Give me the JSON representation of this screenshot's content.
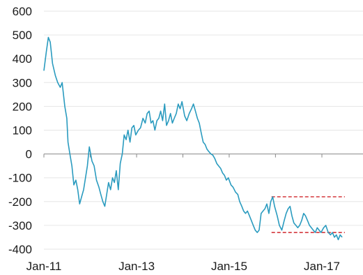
{
  "chart_data": {
    "type": "line",
    "title": "",
    "xlabel": "",
    "ylabel": "",
    "ylim": [
      -400,
      600
    ],
    "y_ticks": [
      600,
      500,
      400,
      300,
      200,
      100,
      0,
      -100,
      -200,
      -300,
      -400
    ],
    "x_ticks": [
      "Jan-11",
      "Jan-13",
      "Jan-15",
      "Jan-17"
    ],
    "grid": true,
    "legend": "none",
    "colors": {
      "line": "#2a9bbf",
      "grid": "#e6e6e6",
      "zero_axis": "#888888",
      "reference": "#d0262c"
    },
    "series": [
      {
        "color": "#2a9bbf",
        "points": [
          [
            "2011-01-01",
            350
          ],
          [
            "2011-01-20",
            430
          ],
          [
            "2011-02-05",
            490
          ],
          [
            "2011-02-20",
            470
          ],
          [
            "2011-03-10",
            380
          ],
          [
            "2011-04-01",
            330
          ],
          [
            "2011-04-20",
            300
          ],
          [
            "2011-05-10",
            280
          ],
          [
            "2011-05-25",
            300
          ],
          [
            "2011-06-15",
            200
          ],
          [
            "2011-07-01",
            150
          ],
          [
            "2011-07-10",
            50
          ],
          [
            "2011-07-25",
            0
          ],
          [
            "2011-08-10",
            -50
          ],
          [
            "2011-08-25",
            -130
          ],
          [
            "2011-09-10",
            -110
          ],
          [
            "2011-09-25",
            -150
          ],
          [
            "2011-10-10",
            -210
          ],
          [
            "2011-10-25",
            -180
          ],
          [
            "2011-11-10",
            -150
          ],
          [
            "2011-11-25",
            -100
          ],
          [
            "2011-12-10",
            -50
          ],
          [
            "2011-12-25",
            30
          ],
          [
            "2012-01-15",
            -30
          ],
          [
            "2012-02-01",
            -50
          ],
          [
            "2012-02-20",
            -110
          ],
          [
            "2012-03-10",
            -140
          ],
          [
            "2012-03-25",
            -170
          ],
          [
            "2012-04-10",
            -200
          ],
          [
            "2012-04-25",
            -220
          ],
          [
            "2012-05-10",
            -170
          ],
          [
            "2012-05-25",
            -120
          ],
          [
            "2012-06-10",
            -150
          ],
          [
            "2012-06-25",
            -100
          ],
          [
            "2012-07-10",
            -120
          ],
          [
            "2012-07-25",
            -70
          ],
          [
            "2012-08-10",
            -150
          ],
          [
            "2012-08-25",
            -40
          ],
          [
            "2012-09-10",
            0
          ],
          [
            "2012-09-25",
            80
          ],
          [
            "2012-10-10",
            60
          ],
          [
            "2012-10-25",
            100
          ],
          [
            "2012-11-10",
            50
          ],
          [
            "2012-11-25",
            110
          ],
          [
            "2012-12-10",
            120
          ],
          [
            "2012-12-25",
            80
          ],
          [
            "2013-01-15",
            100
          ],
          [
            "2013-02-01",
            110
          ],
          [
            "2013-02-20",
            150
          ],
          [
            "2013-03-10",
            130
          ],
          [
            "2013-03-25",
            170
          ],
          [
            "2013-04-10",
            180
          ],
          [
            "2013-04-25",
            130
          ],
          [
            "2013-05-10",
            140
          ],
          [
            "2013-05-25",
            100
          ],
          [
            "2013-06-10",
            140
          ],
          [
            "2013-06-25",
            150
          ],
          [
            "2013-07-10",
            180
          ],
          [
            "2013-07-25",
            140
          ],
          [
            "2013-08-10",
            210
          ],
          [
            "2013-08-25",
            120
          ],
          [
            "2013-09-10",
            140
          ],
          [
            "2013-09-25",
            170
          ],
          [
            "2013-10-10",
            130
          ],
          [
            "2013-10-25",
            150
          ],
          [
            "2013-11-10",
            170
          ],
          [
            "2013-11-25",
            210
          ],
          [
            "2013-12-10",
            190
          ],
          [
            "2013-12-25",
            220
          ],
          [
            "2014-01-15",
            160
          ],
          [
            "2014-02-01",
            140
          ],
          [
            "2014-02-20",
            170
          ],
          [
            "2014-03-10",
            190
          ],
          [
            "2014-03-25",
            210
          ],
          [
            "2014-04-10",
            180
          ],
          [
            "2014-04-25",
            150
          ],
          [
            "2014-05-10",
            130
          ],
          [
            "2014-05-25",
            90
          ],
          [
            "2014-06-10",
            50
          ],
          [
            "2014-06-25",
            40
          ],
          [
            "2014-07-10",
            20
          ],
          [
            "2014-07-25",
            10
          ],
          [
            "2014-08-10",
            0
          ],
          [
            "2014-08-25",
            -5
          ],
          [
            "2014-09-10",
            -20
          ],
          [
            "2014-09-25",
            -40
          ],
          [
            "2014-10-10",
            -50
          ],
          [
            "2014-10-25",
            -60
          ],
          [
            "2014-11-10",
            -80
          ],
          [
            "2014-11-25",
            -90
          ],
          [
            "2014-12-10",
            -110
          ],
          [
            "2014-12-25",
            -100
          ],
          [
            "2015-01-15",
            -130
          ],
          [
            "2015-02-01",
            -140
          ],
          [
            "2015-02-20",
            -160
          ],
          [
            "2015-03-10",
            -170
          ],
          [
            "2015-03-25",
            -200
          ],
          [
            "2015-04-10",
            -220
          ],
          [
            "2015-04-25",
            -240
          ],
          [
            "2015-05-10",
            -250
          ],
          [
            "2015-05-25",
            -240
          ],
          [
            "2015-06-10",
            -260
          ],
          [
            "2015-06-25",
            -280
          ],
          [
            "2015-07-10",
            -300
          ],
          [
            "2015-07-25",
            -320
          ],
          [
            "2015-08-10",
            -330
          ],
          [
            "2015-08-25",
            -320
          ],
          [
            "2015-09-10",
            -250
          ],
          [
            "2015-09-25",
            -240
          ],
          [
            "2015-10-10",
            -230
          ],
          [
            "2015-10-25",
            -210
          ],
          [
            "2015-11-10",
            -250
          ],
          [
            "2015-11-25",
            -200
          ],
          [
            "2015-12-10",
            -180
          ],
          [
            "2015-12-25",
            -220
          ],
          [
            "2016-01-15",
            -260
          ],
          [
            "2016-02-01",
            -300
          ],
          [
            "2016-02-20",
            -320
          ],
          [
            "2016-03-10",
            -280
          ],
          [
            "2016-03-25",
            -250
          ],
          [
            "2016-04-10",
            -230
          ],
          [
            "2016-04-25",
            -220
          ],
          [
            "2016-05-10",
            -260
          ],
          [
            "2016-05-25",
            -290
          ],
          [
            "2016-06-10",
            -300
          ],
          [
            "2016-06-25",
            -310
          ],
          [
            "2016-07-10",
            -300
          ],
          [
            "2016-07-25",
            -280
          ],
          [
            "2016-08-10",
            -250
          ],
          [
            "2016-08-25",
            -260
          ],
          [
            "2016-09-10",
            -280
          ],
          [
            "2016-09-25",
            -300
          ],
          [
            "2016-10-10",
            -310
          ],
          [
            "2016-10-25",
            -320
          ],
          [
            "2016-11-10",
            -330
          ],
          [
            "2016-11-25",
            -310
          ],
          [
            "2016-12-10",
            -320
          ],
          [
            "2016-12-25",
            -330
          ],
          [
            "2017-01-15",
            -310
          ],
          [
            "2017-02-01",
            -300
          ],
          [
            "2017-02-20",
            -330
          ],
          [
            "2017-03-10",
            -340
          ],
          [
            "2017-03-25",
            -330
          ],
          [
            "2017-04-10",
            -350
          ],
          [
            "2017-04-25",
            -340
          ],
          [
            "2017-05-10",
            -360
          ],
          [
            "2017-05-25",
            -340
          ],
          [
            "2017-06-10",
            -350
          ]
        ]
      }
    ],
    "reference_lines": [
      {
        "y": -180,
        "x_start": "2015-12-01",
        "x_end": "2017-07-01",
        "style": "dashed"
      },
      {
        "y": -330,
        "x_start": "2015-12-01",
        "x_end": "2017-07-01",
        "style": "dashed"
      }
    ]
  }
}
